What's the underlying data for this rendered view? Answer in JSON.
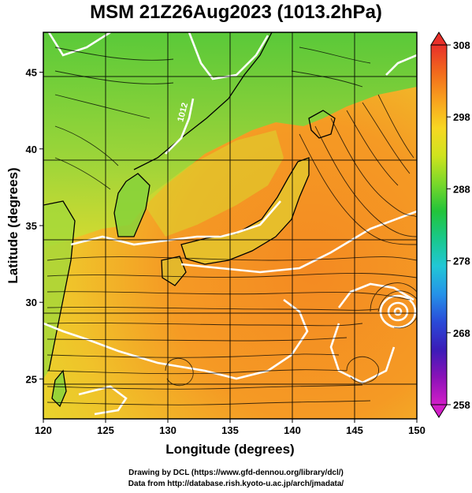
{
  "title": "MSM 21Z26Aug2023 (1013.2hPa)",
  "map": {
    "lon_range": [
      120,
      150
    ],
    "lat_range": [
      22.4,
      47.6
    ],
    "xlabel": "Longitude (degrees)",
    "ylabel": "Latitude  (degrees)",
    "x_ticks": [
      "120",
      "125",
      "130",
      "135",
      "140",
      "145",
      "150"
    ],
    "y_ticks": [
      "25",
      "30",
      "35",
      "40",
      "45"
    ],
    "grid": true,
    "contour_label": "1012",
    "colorbar": {
      "ticks": [
        "308",
        "298",
        "288",
        "278",
        "268",
        "258"
      ],
      "colors": [
        "#e8302a",
        "#f26a1c",
        "#f8a21e",
        "#f7d722",
        "#cfe31e",
        "#7ad82a",
        "#22c43a",
        "#19c88a",
        "#21c7d6",
        "#2593e8",
        "#2a4bd8",
        "#3a1cb8",
        "#8a12b8",
        "#d21ec8"
      ]
    }
  },
  "credits": {
    "line1": "Drawing by DCL (https://www.gfd-dennou.org/library/dcl/)",
    "line2": "Data from http://database.rish.kyoto-u.ac.jp/arch/jmadata/"
  }
}
